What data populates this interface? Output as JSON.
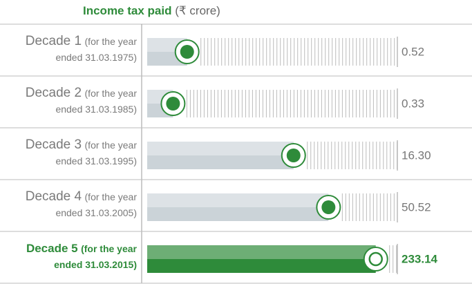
{
  "chart_data": {
    "type": "bar",
    "orientation": "horizontal",
    "title": "Income tax paid",
    "subtitle": "(₹ crore)",
    "categories": [
      "Decade 1",
      "Decade 2",
      "Decade 3",
      "Decade 4",
      "Decade 5"
    ],
    "notes": [
      "(for the year ended 31.03.1975)",
      "(for the year ended 31.03.1985)",
      "(for the year ended 31.03.1995)",
      "(for the year ended 31.03.2005)",
      "(for the year ended 31.03.2015)"
    ],
    "values": [
      0.52,
      0.33,
      16.3,
      50.52,
      233.14
    ],
    "value_labels": [
      "0.52",
      "0.33",
      "16.30",
      "50.52",
      "233.14"
    ],
    "colors": [
      "#cbd3d8",
      "#cbd3d8",
      "#cbd3d8",
      "#cbd3d8",
      "#2e8b3a"
    ],
    "marker_color": "#2e8b3a",
    "xlim": [
      0.2,
      300
    ],
    "log_scale": true
  }
}
